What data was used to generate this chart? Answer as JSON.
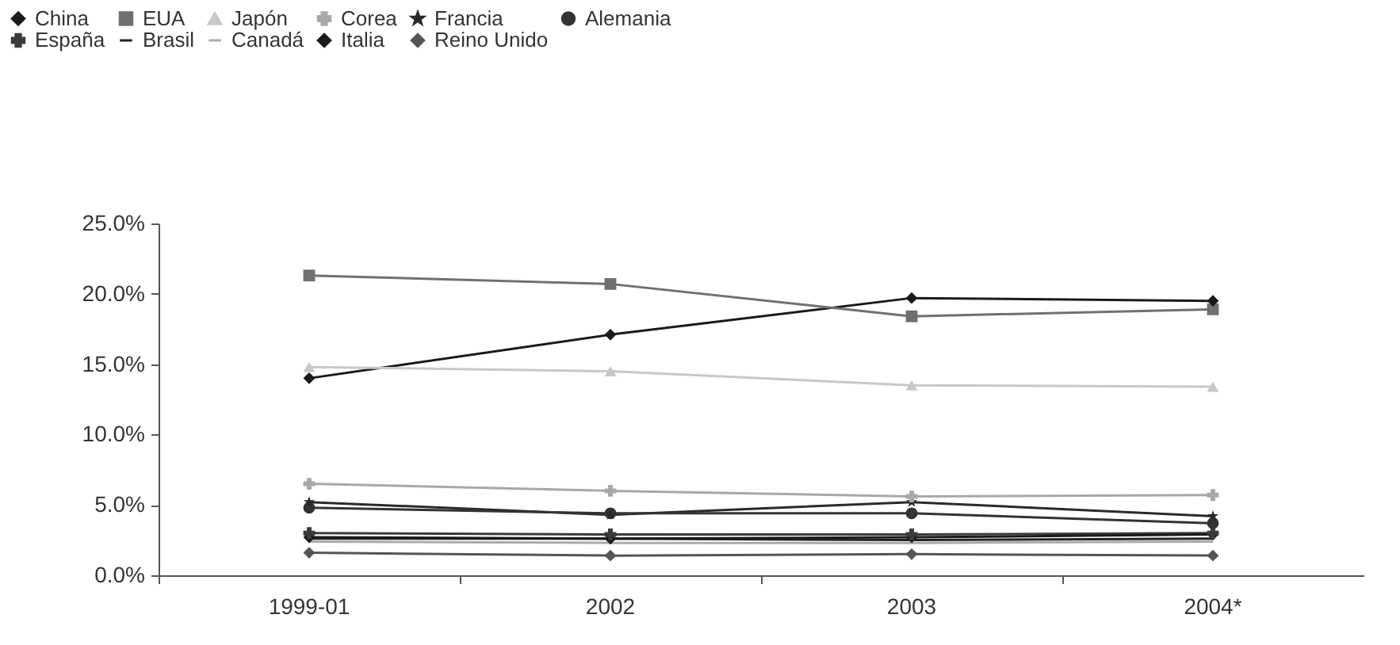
{
  "chart_data": {
    "type": "line",
    "categories": [
      "1999-01",
      "2002",
      "2003",
      "2004*"
    ],
    "ylim": [
      0,
      25
    ],
    "yticks": [
      {
        "value": 0,
        "label": "0.0%"
      },
      {
        "value": 5,
        "label": "5.0%"
      },
      {
        "value": 10,
        "label": "10.0%"
      },
      {
        "value": 15,
        "label": "15.0%"
      },
      {
        "value": 20,
        "label": "20.0%"
      },
      {
        "value": 25,
        "label": "25.0%"
      }
    ],
    "grid": false,
    "legend": "top",
    "line_style": "solid",
    "series": [
      {
        "name": "China",
        "color": "#1a1a1a",
        "marker": "diamond",
        "values": [
          14.0,
          17.1,
          19.7,
          19.5
        ]
      },
      {
        "name": "EUA",
        "color": "#707070",
        "marker": "square",
        "values": [
          21.3,
          20.7,
          18.4,
          18.9
        ]
      },
      {
        "name": "Japón",
        "color": "#c8c8c8",
        "marker": "triangle",
        "values": [
          14.8,
          14.5,
          13.5,
          13.4
        ]
      },
      {
        "name": "Corea",
        "color": "#a8a8a8",
        "marker": "cross",
        "values": [
          6.5,
          6.0,
          5.6,
          5.7
        ]
      },
      {
        "name": "Francia",
        "color": "#2a2a2a",
        "marker": "star",
        "values": [
          5.2,
          4.3,
          5.2,
          4.2
        ]
      },
      {
        "name": "Alemania",
        "color": "#333333",
        "marker": "circle",
        "values": [
          4.8,
          4.4,
          4.4,
          3.7
        ]
      },
      {
        "name": "España",
        "color": "#3a3a3a",
        "marker": "cross",
        "values": [
          3.0,
          2.9,
          2.9,
          3.0
        ]
      },
      {
        "name": "Brasil",
        "color": "#222222",
        "marker": "none",
        "values": [
          2.6,
          2.6,
          2.5,
          2.6
        ]
      },
      {
        "name": "Canadá",
        "color": "#aaaaaa",
        "marker": "none",
        "values": [
          2.4,
          2.3,
          2.3,
          2.4
        ]
      },
      {
        "name": "Italia",
        "color": "#1a1a1a",
        "marker": "diamond",
        "values": [
          2.7,
          2.6,
          2.7,
          2.9
        ]
      },
      {
        "name": "Reino Unido",
        "color": "#555555",
        "marker": "diamond",
        "values": [
          1.6,
          1.4,
          1.5,
          1.4
        ]
      }
    ]
  }
}
